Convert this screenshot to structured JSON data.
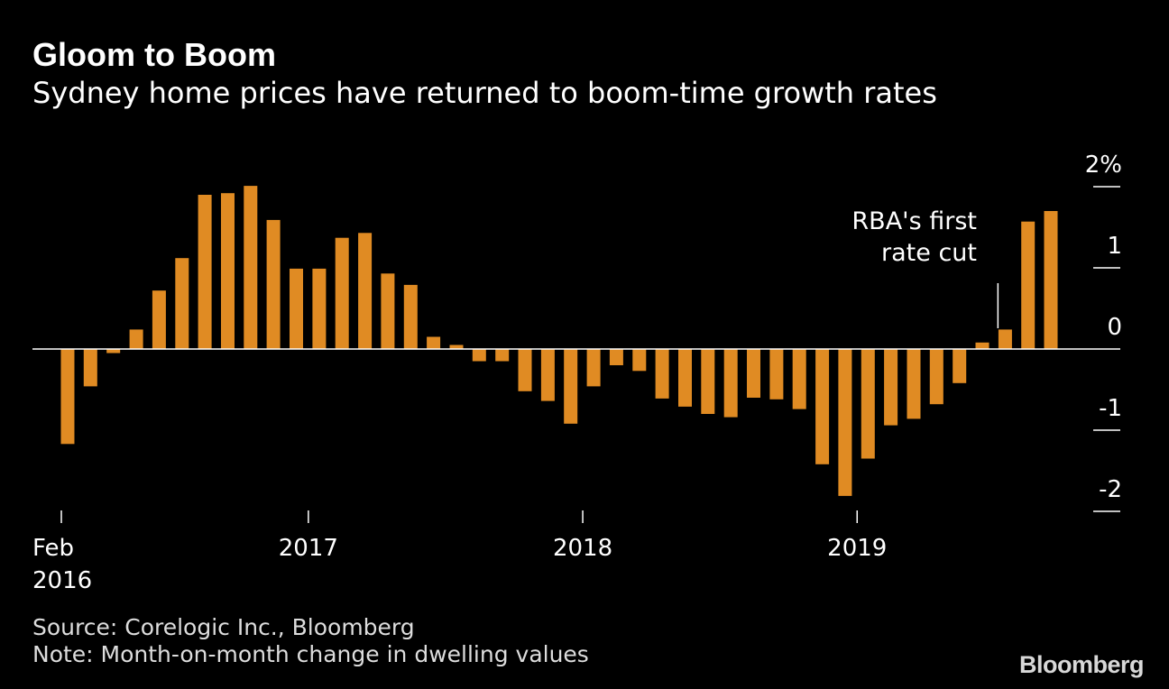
{
  "title": "Gloom to Boom",
  "subtitle": "Sydney home prices have returned to boom-time growth rates",
  "source": "Source: Corelogic Inc., Bloomberg",
  "note": "Note: Month-on-month change in dwelling values",
  "logo": "Bloomberg",
  "colors": {
    "background": "#000000",
    "bar": "#E08B23",
    "text": "#FFFFFF",
    "axis": "#FFFFFF"
  },
  "chart_data": {
    "type": "bar",
    "unit": "%",
    "ylim": [
      -2,
      2
    ],
    "yticks": [
      {
        "value": 2,
        "label": "2%"
      },
      {
        "value": 1,
        "label": "1"
      },
      {
        "value": 0,
        "label": "0"
      },
      {
        "value": -1,
        "label": "-1"
      },
      {
        "value": -2,
        "label": "-2"
      }
    ],
    "categories": [
      "2016-02",
      "2016-03",
      "2016-04",
      "2016-05",
      "2016-06",
      "2016-07",
      "2016-08",
      "2016-09",
      "2016-10",
      "2016-11",
      "2016-12",
      "2017-01",
      "2017-02",
      "2017-03",
      "2017-04",
      "2017-05",
      "2017-06",
      "2017-07",
      "2017-08",
      "2017-09",
      "2017-10",
      "2017-11",
      "2017-12",
      "2018-01",
      "2018-02",
      "2018-03",
      "2018-04",
      "2018-05",
      "2018-06",
      "2018-07",
      "2018-08",
      "2018-09",
      "2018-10",
      "2018-11",
      "2018-12",
      "2019-01",
      "2019-02",
      "2019-03",
      "2019-04",
      "2019-05",
      "2019-06",
      "2019-07",
      "2019-08",
      "2019-09"
    ],
    "values": [
      -1.17,
      -0.46,
      -0.05,
      0.24,
      0.72,
      1.12,
      1.9,
      1.92,
      2.01,
      1.59,
      0.99,
      0.99,
      1.37,
      1.43,
      0.93,
      0.79,
      0.15,
      0.05,
      -0.15,
      -0.15,
      -0.52,
      -0.64,
      -0.92,
      -0.46,
      -0.2,
      -0.27,
      -0.61,
      -0.71,
      -0.8,
      -0.84,
      -0.6,
      -0.62,
      -0.74,
      -1.42,
      -1.81,
      -1.35,
      -0.94,
      -0.86,
      -0.68,
      -0.42,
      0.08,
      0.24,
      1.57,
      1.7
    ],
    "xticks": [
      {
        "category": "2016-02",
        "label": "Feb",
        "label2": "2016"
      },
      {
        "category": "2017-01",
        "label": "2017",
        "label2": ""
      },
      {
        "category": "2018-01",
        "label": "2018",
        "label2": ""
      },
      {
        "category": "2019-01",
        "label": "2019",
        "label2": ""
      }
    ],
    "annotation": {
      "lines": [
        "RBA's first",
        "rate cut"
      ],
      "category": "2019-07"
    },
    "grid": false,
    "legend": "none"
  }
}
